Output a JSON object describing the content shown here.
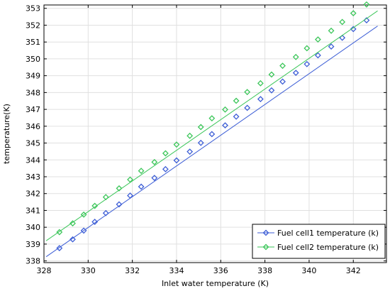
{
  "chart_data": {
    "type": "line",
    "title": "",
    "xlabel": "Inlet water temperature (K)",
    "ylabel": "temperature(K)",
    "xlim": [
      328,
      343.5
    ],
    "ylim": [
      337.9,
      353.2
    ],
    "x_ticks": [
      328,
      330,
      332,
      334,
      336,
      338,
      340,
      342
    ],
    "y_ticks": [
      338,
      339,
      340,
      341,
      342,
      343,
      344,
      345,
      346,
      347,
      348,
      349,
      350,
      351,
      352,
      353
    ],
    "grid": true,
    "legend_position": "bottom-right",
    "series": [
      {
        "name": "Fuel cell1 temperature (k)",
        "color": "#3d5ed6",
        "marker": "diamond",
        "line_x": [
          328.1,
          343.1
        ],
        "line_y": [
          338.25,
          351.95
        ],
        "x": [
          328.7,
          329.3,
          329.8,
          330.3,
          330.8,
          331.4,
          331.9,
          332.4,
          333.0,
          333.5,
          334.0,
          334.6,
          335.1,
          335.6,
          336.2,
          336.7,
          337.2,
          337.8,
          338.3,
          338.8,
          339.4,
          339.9,
          340.4,
          341.0,
          341.5,
          342.0,
          342.6
        ],
        "y": [
          338.76,
          339.28,
          339.8,
          340.32,
          340.84,
          341.36,
          341.88,
          342.41,
          342.93,
          343.45,
          343.97,
          344.49,
          345.01,
          345.53,
          346.05,
          346.57,
          347.09,
          347.61,
          348.13,
          348.65,
          349.17,
          349.69,
          350.21,
          350.73,
          351.25,
          351.77,
          352.29
        ]
      },
      {
        "name": "Fuel cell2 temperature (k)",
        "color": "#3cc65a",
        "marker": "diamond",
        "line_x": [
          328.1,
          343.1
        ],
        "line_y": [
          339.2,
          352.85
        ],
        "x": [
          328.7,
          329.3,
          329.8,
          330.3,
          330.8,
          331.4,
          331.9,
          332.4,
          333.0,
          333.5,
          334.0,
          334.6,
          335.1,
          335.6,
          336.2,
          336.7,
          337.2,
          337.8,
          338.3,
          338.8,
          339.4,
          339.9,
          340.4,
          341.0,
          341.5,
          342.0,
          342.6
        ],
        "y": [
          339.71,
          340.23,
          340.75,
          341.27,
          341.79,
          342.31,
          342.83,
          343.35,
          343.87,
          344.39,
          344.91,
          345.43,
          345.95,
          346.47,
          346.99,
          347.51,
          348.03,
          348.55,
          349.07,
          349.59,
          350.11,
          350.63,
          351.15,
          351.67,
          352.19,
          352.71,
          353.23
        ]
      }
    ]
  }
}
